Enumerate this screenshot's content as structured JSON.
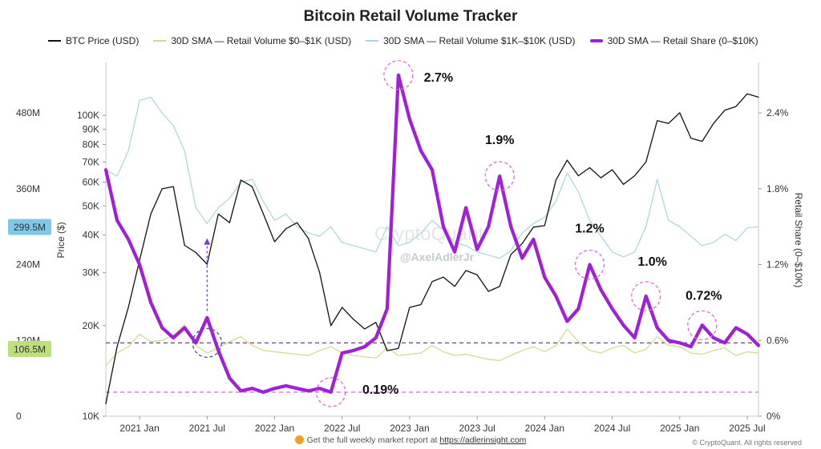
{
  "chart_data": {
    "type": "line",
    "title": "Bitcoin Retail Volume Tracker",
    "x_ticks": [
      "2021 Jan",
      "2021 Jul",
      "2022 Jan",
      "2022 Jul",
      "2023 Jan",
      "2023 Jul",
      "2024 Jan",
      "2024 Jul",
      "2025 Jan",
      "2025 Jul"
    ],
    "x_range": [
      "2020-10",
      "2025-08"
    ],
    "price_axis": {
      "label": "Price ($)",
      "scale": "log",
      "ticks": [
        "100K",
        "90K",
        "80K",
        "70K",
        "60K",
        "50K",
        "40K",
        "30K",
        "20K",
        "10K"
      ],
      "range": [
        10000,
        150000
      ]
    },
    "volume_axis": {
      "ticks": [
        "480M",
        "360M",
        "240M",
        "120M",
        "0"
      ],
      "range": [
        0,
        560
      ],
      "highlight_ticks": [
        "299.5M",
        "106.5M"
      ]
    },
    "share_axis": {
      "label": "Retail Share (0–$10K)",
      "ticks": [
        "2.4%",
        "1.8%",
        "1.2%",
        "0.6%",
        "0%"
      ],
      "range": [
        0,
        2.8
      ]
    },
    "series": [
      {
        "name": "BTC Price (USD)",
        "axis": "price",
        "color": "#111111",
        "points": [
          [
            "2020-10",
            11000
          ],
          [
            "2020-11",
            17000
          ],
          [
            "2020-12",
            23000
          ],
          [
            "2021-01",
            33000
          ],
          [
            "2021-02",
            47000
          ],
          [
            "2021-03",
            57000
          ],
          [
            "2021-04",
            58000
          ],
          [
            "2021-05",
            37000
          ],
          [
            "2021-06",
            35000
          ],
          [
            "2021-07",
            32000
          ],
          [
            "2021-08",
            47000
          ],
          [
            "2021-09",
            44000
          ],
          [
            "2021-10",
            61000
          ],
          [
            "2021-11",
            58000
          ],
          [
            "2021-12",
            47000
          ],
          [
            "2022-01",
            38000
          ],
          [
            "2022-02",
            42000
          ],
          [
            "2022-03",
            44000
          ],
          [
            "2022-04",
            39000
          ],
          [
            "2022-05",
            30000
          ],
          [
            "2022-06",
            20000
          ],
          [
            "2022-07",
            23000
          ],
          [
            "2022-08",
            21000
          ],
          [
            "2022-09",
            19500
          ],
          [
            "2022-10",
            20500
          ],
          [
            "2022-11",
            16500
          ],
          [
            "2022-12",
            16800
          ],
          [
            "2023-01",
            23000
          ],
          [
            "2023-02",
            23500
          ],
          [
            "2023-03",
            28000
          ],
          [
            "2023-04",
            29000
          ],
          [
            "2023-05",
            27000
          ],
          [
            "2023-06",
            30500
          ],
          [
            "2023-07",
            29500
          ],
          [
            "2023-08",
            26000
          ],
          [
            "2023-09",
            27000
          ],
          [
            "2023-10",
            34500
          ],
          [
            "2023-11",
            37500
          ],
          [
            "2023-12",
            42500
          ],
          [
            "2024-01",
            43000
          ],
          [
            "2024-02",
            61000
          ],
          [
            "2024-03",
            71000
          ],
          [
            "2024-04",
            63000
          ],
          [
            "2024-05",
            67000
          ],
          [
            "2024-06",
            62000
          ],
          [
            "2024-07",
            66000
          ],
          [
            "2024-08",
            59000
          ],
          [
            "2024-09",
            63000
          ],
          [
            "2024-10",
            70000
          ],
          [
            "2024-11",
            96000
          ],
          [
            "2024-12",
            94000
          ],
          [
            "2025-01",
            102000
          ],
          [
            "2025-02",
            84000
          ],
          [
            "2025-03",
            82000
          ],
          [
            "2025-04",
            94000
          ],
          [
            "2025-05",
            104000
          ],
          [
            "2025-06",
            107000
          ],
          [
            "2025-07",
            118000
          ],
          [
            "2025-08",
            115000
          ]
        ]
      },
      {
        "name": "30D SMA — Retail Volume $0–$1K (USD)",
        "axis": "volume",
        "color": "#c9dc8e",
        "points": [
          [
            "2020-10",
            80
          ],
          [
            "2020-11",
            100
          ],
          [
            "2020-12",
            110
          ],
          [
            "2021-01",
            130
          ],
          [
            "2021-02",
            118
          ],
          [
            "2021-03",
            120
          ],
          [
            "2021-04",
            128
          ],
          [
            "2021-05",
            145
          ],
          [
            "2021-06",
            112
          ],
          [
            "2021-07",
            100
          ],
          [
            "2021-08",
            108
          ],
          [
            "2021-09",
            118
          ],
          [
            "2021-10",
            126
          ],
          [
            "2021-11",
            112
          ],
          [
            "2021-12",
            104
          ],
          [
            "2022-01",
            102
          ],
          [
            "2022-02",
            100
          ],
          [
            "2022-03",
            98
          ],
          [
            "2022-04",
            96
          ],
          [
            "2022-05",
            104
          ],
          [
            "2022-06",
            110
          ],
          [
            "2022-07",
            100
          ],
          [
            "2022-08",
            96
          ],
          [
            "2022-09",
            94
          ],
          [
            "2022-10",
            92
          ],
          [
            "2022-11",
            108
          ],
          [
            "2022-12",
            96
          ],
          [
            "2023-01",
            98
          ],
          [
            "2023-02",
            100
          ],
          [
            "2023-03",
            112
          ],
          [
            "2023-04",
            102
          ],
          [
            "2023-05",
            96
          ],
          [
            "2023-06",
            98
          ],
          [
            "2023-07",
            94
          ],
          [
            "2023-08",
            90
          ],
          [
            "2023-09",
            88
          ],
          [
            "2023-10",
            96
          ],
          [
            "2023-11",
            104
          ],
          [
            "2023-12",
            110
          ],
          [
            "2024-01",
            102
          ],
          [
            "2024-02",
            112
          ],
          [
            "2024-03",
            138
          ],
          [
            "2024-04",
            118
          ],
          [
            "2024-05",
            104
          ],
          [
            "2024-06",
            100
          ],
          [
            "2024-07",
            108
          ],
          [
            "2024-08",
            112
          ],
          [
            "2024-09",
            100
          ],
          [
            "2024-10",
            106
          ],
          [
            "2024-11",
            126
          ],
          [
            "2024-12",
            112
          ],
          [
            "2025-01",
            110
          ],
          [
            "2025-02",
            100
          ],
          [
            "2025-03",
            98
          ],
          [
            "2025-04",
            104
          ],
          [
            "2025-05",
            108
          ],
          [
            "2025-06",
            96
          ],
          [
            "2025-07",
            102
          ],
          [
            "2025-08",
            100
          ]
        ]
      },
      {
        "name": "30D SMA — Retail Volume $1K–$10K (USD)",
        "axis": "volume",
        "color": "#a8d4e6",
        "points": [
          [
            "2020-10",
            390
          ],
          [
            "2020-11",
            380
          ],
          [
            "2020-12",
            420
          ],
          [
            "2021-01",
            500
          ],
          [
            "2021-02",
            505
          ],
          [
            "2021-03",
            480
          ],
          [
            "2021-04",
            460
          ],
          [
            "2021-05",
            420
          ],
          [
            "2021-06",
            330
          ],
          [
            "2021-07",
            305
          ],
          [
            "2021-08",
            330
          ],
          [
            "2021-09",
            345
          ],
          [
            "2021-10",
            370
          ],
          [
            "2021-11",
            375
          ],
          [
            "2021-12",
            340
          ],
          [
            "2022-01",
            310
          ],
          [
            "2022-02",
            320
          ],
          [
            "2022-03",
            300
          ],
          [
            "2022-04",
            290
          ],
          [
            "2022-05",
            285
          ],
          [
            "2022-06",
            300
          ],
          [
            "2022-07",
            275
          ],
          [
            "2022-08",
            270
          ],
          [
            "2022-09",
            265
          ],
          [
            "2022-10",
            260
          ],
          [
            "2022-11",
            300
          ],
          [
            "2022-12",
            270
          ],
          [
            "2023-01",
            275
          ],
          [
            "2023-02",
            290
          ],
          [
            "2023-03",
            310
          ],
          [
            "2023-04",
            295
          ],
          [
            "2023-05",
            275
          ],
          [
            "2023-06",
            270
          ],
          [
            "2023-07",
            260
          ],
          [
            "2023-08",
            255
          ],
          [
            "2023-09",
            250
          ],
          [
            "2023-10",
            262
          ],
          [
            "2023-11",
            290
          ],
          [
            "2023-12",
            305
          ],
          [
            "2024-01",
            315
          ],
          [
            "2024-02",
            340
          ],
          [
            "2024-03",
            385
          ],
          [
            "2024-04",
            355
          ],
          [
            "2024-05",
            310
          ],
          [
            "2024-06",
            285
          ],
          [
            "2024-07",
            260
          ],
          [
            "2024-08",
            252
          ],
          [
            "2024-09",
            260
          ],
          [
            "2024-10",
            300
          ],
          [
            "2024-11",
            375
          ],
          [
            "2024-12",
            310
          ],
          [
            "2025-01",
            300
          ],
          [
            "2025-02",
            285
          ],
          [
            "2025-03",
            270
          ],
          [
            "2025-04",
            275
          ],
          [
            "2025-05",
            288
          ],
          [
            "2025-06",
            278
          ],
          [
            "2025-07",
            298
          ],
          [
            "2025-08",
            300
          ]
        ]
      },
      {
        "name": "30D SMA — Retail Share (0–$10K)",
        "axis": "share",
        "color": "#a21fd9",
        "points": [
          [
            "2020-10",
            1.95
          ],
          [
            "2020-11",
            1.55
          ],
          [
            "2020-12",
            1.4
          ],
          [
            "2021-01",
            1.2
          ],
          [
            "2021-02",
            0.9
          ],
          [
            "2021-03",
            0.7
          ],
          [
            "2021-04",
            0.62
          ],
          [
            "2021-05",
            0.7
          ],
          [
            "2021-06",
            0.58
          ],
          [
            "2021-07",
            0.78
          ],
          [
            "2021-08",
            0.52
          ],
          [
            "2021-09",
            0.3
          ],
          [
            "2021-10",
            0.2
          ],
          [
            "2021-11",
            0.22
          ],
          [
            "2021-12",
            0.19
          ],
          [
            "2022-01",
            0.22
          ],
          [
            "2022-02",
            0.24
          ],
          [
            "2022-03",
            0.22
          ],
          [
            "2022-04",
            0.2
          ],
          [
            "2022-05",
            0.22
          ],
          [
            "2022-06",
            0.19
          ],
          [
            "2022-07",
            0.5
          ],
          [
            "2022-08",
            0.52
          ],
          [
            "2022-09",
            0.55
          ],
          [
            "2022-10",
            0.62
          ],
          [
            "2022-11",
            0.85
          ],
          [
            "2022-12",
            2.7
          ],
          [
            "2023-01",
            2.35
          ],
          [
            "2023-02",
            2.1
          ],
          [
            "2023-03",
            1.95
          ],
          [
            "2023-04",
            1.5
          ],
          [
            "2023-05",
            1.3
          ],
          [
            "2023-06",
            1.65
          ],
          [
            "2023-07",
            1.32
          ],
          [
            "2023-08",
            1.5
          ],
          [
            "2023-09",
            1.9
          ],
          [
            "2023-10",
            1.5
          ],
          [
            "2023-11",
            1.25
          ],
          [
            "2023-12",
            1.4
          ],
          [
            "2024-01",
            1.1
          ],
          [
            "2024-02",
            0.95
          ],
          [
            "2024-03",
            0.75
          ],
          [
            "2024-04",
            0.85
          ],
          [
            "2024-05",
            1.2
          ],
          [
            "2024-06",
            1.0
          ],
          [
            "2024-07",
            0.85
          ],
          [
            "2024-08",
            0.72
          ],
          [
            "2024-09",
            0.62
          ],
          [
            "2024-10",
            0.95
          ],
          [
            "2024-11",
            0.7
          ],
          [
            "2024-12",
            0.6
          ],
          [
            "2025-01",
            0.58
          ],
          [
            "2025-02",
            0.55
          ],
          [
            "2025-03",
            0.72
          ],
          [
            "2025-04",
            0.62
          ],
          [
            "2025-05",
            0.58
          ],
          [
            "2025-06",
            0.7
          ],
          [
            "2025-07",
            0.65
          ],
          [
            "2025-08",
            0.56
          ]
        ]
      }
    ],
    "reference_lines": [
      {
        "axis": "share",
        "value": 0.19,
        "color": "#d06ad8",
        "style": "dashed"
      },
      {
        "axis": "share",
        "value": 0.58,
        "color": "#7a4a8a",
        "style": "dashed"
      }
    ],
    "annotations": [
      {
        "text": "2.7%",
        "x": "2022-12",
        "y": 2.7
      },
      {
        "text": "1.9%",
        "x": "2023-09",
        "y": 1.9
      },
      {
        "text": "1.2%",
        "x": "2024-05",
        "y": 1.2
      },
      {
        "text": "1.0%",
        "x": "2024-10",
        "y": 0.95
      },
      {
        "text": "0.72%",
        "x": "2025-03",
        "y": 0.72
      },
      {
        "text": "0.19%",
        "x": "2022-06",
        "y": 0.19
      }
    ],
    "markers": [
      {
        "x": "2021-07",
        "y": 0.58,
        "color": "#5a4a9a"
      }
    ],
    "watermark": "CryptoQuant",
    "watermark_handle": "@AxelAdlerJr",
    "legend_position": "top",
    "grid": false
  },
  "footer": {
    "text": "Get the full weekly market report at ",
    "link": "https://adlerinsight.com",
    "rights": "© CryptoQuant. All rights reserved"
  }
}
